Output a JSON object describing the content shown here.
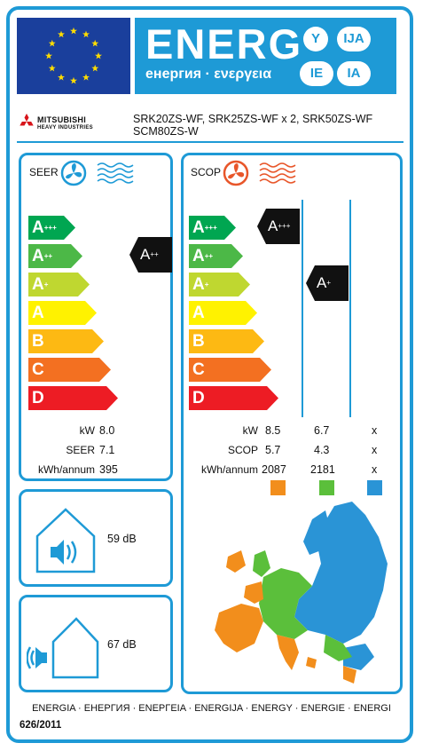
{
  "header": {
    "energ_title": "ENERG",
    "energ_subtitle": "енергия · ενεργεια",
    "lang_codes": [
      "Y",
      "IJA",
      "IE",
      "IA"
    ]
  },
  "brand": {
    "name": "MITSUBISHI",
    "sub": "HEAVY INDUSTRIES"
  },
  "models": {
    "line1": "SRK20ZS-WF, SRK25ZS-WF x 2, SRK50ZS-WF",
    "line2": "SCM80ZS-W"
  },
  "seer": {
    "title": "SEER",
    "scale": [
      "A+++",
      "A++",
      "A+",
      "A",
      "B",
      "C",
      "D"
    ],
    "rating": "A++",
    "rows": [
      {
        "label": "kW",
        "value": "8.0"
      },
      {
        "label": "SEER",
        "value": "7.1"
      },
      {
        "label": "kWh/annum",
        "value": "395"
      }
    ]
  },
  "scop": {
    "title": "SCOP",
    "scale": [
      "A+++",
      "A++",
      "A+",
      "A",
      "B",
      "C",
      "D"
    ],
    "ratings": {
      "warmer": "A+++",
      "average": "A+"
    },
    "row_labels": [
      "kW",
      "SCOP",
      "kWh/annum"
    ],
    "columns": [
      {
        "zone": "warmer",
        "color": "#f28e1c",
        "values": [
          "8.5",
          "5.7",
          "2087"
        ]
      },
      {
        "zone": "average",
        "color": "#5bbf3b",
        "values": [
          "6.7",
          "4.3",
          "2181"
        ]
      },
      {
        "zone": "colder",
        "color": "#2a94d6",
        "values": [
          "x",
          "x",
          "x"
        ]
      }
    ]
  },
  "noise": {
    "indoor": "59 dB",
    "outdoor": "67 dB"
  },
  "footer": {
    "languages": "ENERGIA · ЕНЕРГИЯ · ΕΝΕΡΓΕΙΑ · ENERGIJA · ENERGY · ENERGIE · ENERGI",
    "regulation": "626/2011"
  },
  "colors": {
    "frame": "#1e9ad6",
    "eu_blue": "#1a3f9c",
    "eu_star": "#ffdd00",
    "class_A3": "#00a651",
    "class_A2": "#4cb847",
    "class_A1": "#bfd730",
    "class_A": "#fff200",
    "class_B": "#fdb913",
    "class_C": "#f37021",
    "class_D": "#ed1c24",
    "indicator": "#111111"
  }
}
